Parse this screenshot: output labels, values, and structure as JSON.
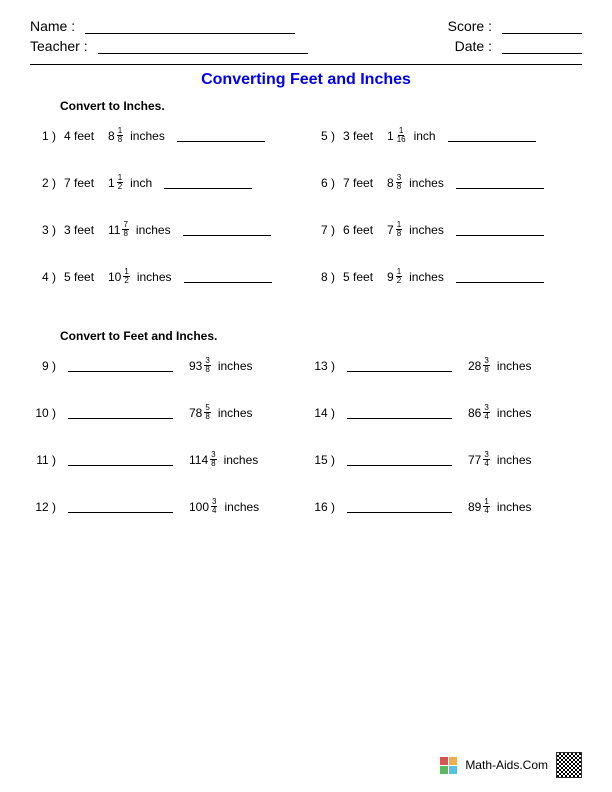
{
  "header": {
    "name_label": "Name :",
    "teacher_label": "Teacher :",
    "score_label": "Score :",
    "date_label": "Date :"
  },
  "title": {
    "text": "Converting Feet and Inches",
    "color": "#0000ee"
  },
  "section1": {
    "label": "Convert to Inches.",
    "problems": [
      {
        "n": "1",
        "feet": "4 feet",
        "whole": "8",
        "num": "1",
        "den": "8",
        "unit": "inches"
      },
      {
        "n": "5",
        "feet": "3 feet",
        "whole": "1",
        "num": "1",
        "den": "16",
        "unit": "inch"
      },
      {
        "n": "2",
        "feet": "7 feet",
        "whole": "1",
        "num": "1",
        "den": "2",
        "unit": "inch"
      },
      {
        "n": "6",
        "feet": "7 feet",
        "whole": "8",
        "num": "3",
        "den": "8",
        "unit": "inches"
      },
      {
        "n": "3",
        "feet": "3 feet",
        "whole": "11",
        "num": "7",
        "den": "8",
        "unit": "inches"
      },
      {
        "n": "7",
        "feet": "6 feet",
        "whole": "7",
        "num": "1",
        "den": "8",
        "unit": "inches"
      },
      {
        "n": "4",
        "feet": "5 feet",
        "whole": "10",
        "num": "1",
        "den": "2",
        "unit": "inches"
      },
      {
        "n": "8",
        "feet": "5 feet",
        "whole": "9",
        "num": "1",
        "den": "2",
        "unit": "inches"
      }
    ]
  },
  "section2": {
    "label": "Convert to Feet and Inches.",
    "problems": [
      {
        "n": "9",
        "whole": "93",
        "num": "3",
        "den": "8",
        "unit": "inches"
      },
      {
        "n": "13",
        "whole": "28",
        "num": "3",
        "den": "8",
        "unit": "inches"
      },
      {
        "n": "10",
        "whole": "78",
        "num": "5",
        "den": "8",
        "unit": "inches"
      },
      {
        "n": "14",
        "whole": "86",
        "num": "3",
        "den": "4",
        "unit": "inches"
      },
      {
        "n": "11",
        "whole": "114",
        "num": "3",
        "den": "8",
        "unit": "inches"
      },
      {
        "n": "15",
        "whole": "77",
        "num": "3",
        "den": "4",
        "unit": "inches"
      },
      {
        "n": "12",
        "whole": "100",
        "num": "3",
        "den": "4",
        "unit": "inches"
      },
      {
        "n": "16",
        "whole": "89",
        "num": "1",
        "den": "4",
        "unit": "inches"
      }
    ]
  },
  "footer": {
    "site": "Math-Aids.Com",
    "logo_colors": [
      "#d9534f",
      "#f0ad4e",
      "#5cb85c",
      "#5bc0de"
    ]
  }
}
